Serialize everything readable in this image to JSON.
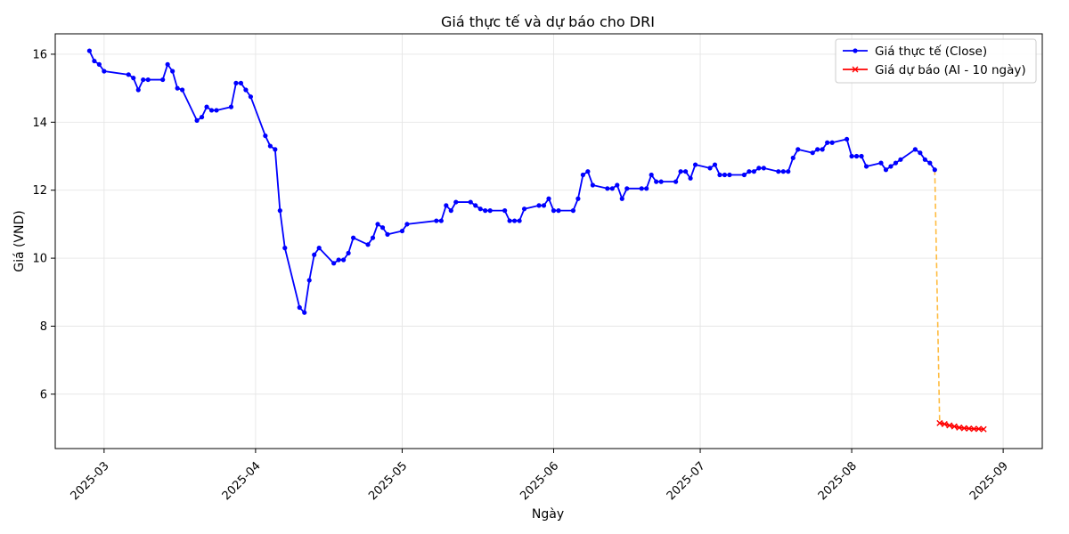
{
  "chart_data": {
    "type": "line",
    "title": "Giá thực tế và dự báo cho DRI",
    "xlabel": "Ngày",
    "ylabel": "Giá (VND)",
    "xlim": [
      "2025-02-19",
      "2025-09-09"
    ],
    "ylim": [
      4.4,
      16.6
    ],
    "x_ticks": [
      "2025-03-01",
      "2025-04-01",
      "2025-05-01",
      "2025-06-01",
      "2025-07-01",
      "2025-08-01",
      "2025-09-01"
    ],
    "x_tick_labels": [
      "2025-03",
      "2025-04",
      "2025-05",
      "2025-06",
      "2025-07",
      "2025-08",
      "2025-09"
    ],
    "y_ticks": [
      6,
      8,
      10,
      12,
      14,
      16
    ],
    "grid": true,
    "legend_position": "top-right",
    "series": [
      {
        "name": "Giá thực tế (Close)",
        "color": "#0000ff",
        "marker": "circle",
        "x": [
          "2025-02-26",
          "2025-02-27",
          "2025-02-28",
          "2025-03-01",
          "2025-03-06",
          "2025-03-07",
          "2025-03-08",
          "2025-03-09",
          "2025-03-10",
          "2025-03-13",
          "2025-03-14",
          "2025-03-15",
          "2025-03-16",
          "2025-03-17",
          "2025-03-20",
          "2025-03-21",
          "2025-03-22",
          "2025-03-23",
          "2025-03-24",
          "2025-03-27",
          "2025-03-28",
          "2025-03-29",
          "2025-03-30",
          "2025-03-31",
          "2025-04-03",
          "2025-04-04",
          "2025-04-05",
          "2025-04-06",
          "2025-04-07",
          "2025-04-10",
          "2025-04-11",
          "2025-04-12",
          "2025-04-13",
          "2025-04-14",
          "2025-04-17",
          "2025-04-18",
          "2025-04-19",
          "2025-04-20",
          "2025-04-21",
          "2025-04-24",
          "2025-04-25",
          "2025-04-26",
          "2025-04-27",
          "2025-04-28",
          "2025-05-01",
          "2025-05-02",
          "2025-05-08",
          "2025-05-09",
          "2025-05-10",
          "2025-05-11",
          "2025-05-12",
          "2025-05-15",
          "2025-05-16",
          "2025-05-17",
          "2025-05-18",
          "2025-05-19",
          "2025-05-22",
          "2025-05-23",
          "2025-05-24",
          "2025-05-25",
          "2025-05-26",
          "2025-05-29",
          "2025-05-30",
          "2025-05-31",
          "2025-06-01",
          "2025-06-02",
          "2025-06-05",
          "2025-06-06",
          "2025-06-07",
          "2025-06-08",
          "2025-06-09",
          "2025-06-12",
          "2025-06-13",
          "2025-06-14",
          "2025-06-15",
          "2025-06-16",
          "2025-06-19",
          "2025-06-20",
          "2025-06-21",
          "2025-06-22",
          "2025-06-23",
          "2025-06-26",
          "2025-06-27",
          "2025-06-28",
          "2025-06-29",
          "2025-06-30",
          "2025-07-03",
          "2025-07-04",
          "2025-07-05",
          "2025-07-06",
          "2025-07-07",
          "2025-07-10",
          "2025-07-11",
          "2025-07-12",
          "2025-07-13",
          "2025-07-14",
          "2025-07-17",
          "2025-07-18",
          "2025-07-19",
          "2025-07-20",
          "2025-07-21",
          "2025-07-24",
          "2025-07-25",
          "2025-07-26",
          "2025-07-27",
          "2025-07-28",
          "2025-07-31",
          "2025-08-01",
          "2025-08-02",
          "2025-08-03",
          "2025-08-04",
          "2025-08-07",
          "2025-08-08",
          "2025-08-09",
          "2025-08-10",
          "2025-08-11",
          "2025-08-14",
          "2025-08-15",
          "2025-08-16",
          "2025-08-17",
          "2025-08-18"
        ],
        "y": [
          16.1,
          15.8,
          15.7,
          15.5,
          15.4,
          15.3,
          14.95,
          15.25,
          15.25,
          15.25,
          15.7,
          15.5,
          15.0,
          14.95,
          14.05,
          14.15,
          14.45,
          14.35,
          14.35,
          14.45,
          15.15,
          15.15,
          14.95,
          14.75,
          13.6,
          13.3,
          13.2,
          11.4,
          10.3,
          8.55,
          8.4,
          9.35,
          10.1,
          10.3,
          9.85,
          9.95,
          9.95,
          10.15,
          10.6,
          10.4,
          10.6,
          11.0,
          10.9,
          10.7,
          10.8,
          11.0,
          11.1,
          11.1,
          11.55,
          11.4,
          11.65,
          11.65,
          11.55,
          11.45,
          11.4,
          11.4,
          11.4,
          11.1,
          11.1,
          11.1,
          11.45,
          11.55,
          11.55,
          11.75,
          11.4,
          11.4,
          11.4,
          11.75,
          12.45,
          12.55,
          12.15,
          12.05,
          12.05,
          12.15,
          11.75,
          12.05,
          12.05,
          12.05,
          12.45,
          12.25,
          12.25,
          12.25,
          12.55,
          12.55,
          12.35,
          12.75,
          12.65,
          12.75,
          12.45,
          12.45,
          12.45,
          12.45,
          12.55,
          12.55,
          12.65,
          12.65,
          12.55,
          12.55,
          12.55,
          12.95,
          13.2,
          13.1,
          13.2,
          13.2,
          13.4,
          13.4,
          13.5,
          13.0,
          13.0,
          13.0,
          12.7,
          12.8,
          12.6,
          12.7,
          12.8,
          12.9,
          13.2,
          13.1,
          12.9,
          12.8,
          12.6
        ]
      },
      {
        "name": "Giá dự báo (AI - 10 ngày)",
        "color": "#ff0000",
        "marker": "x",
        "x": [
          "2025-08-19",
          "2025-08-20",
          "2025-08-21",
          "2025-08-22",
          "2025-08-23",
          "2025-08-24",
          "2025-08-25",
          "2025-08-26",
          "2025-08-27",
          "2025-08-28"
        ],
        "y": [
          5.15,
          5.12,
          5.08,
          5.05,
          5.02,
          5.0,
          4.99,
          4.98,
          4.98,
          4.97
        ]
      }
    ],
    "connector": {
      "color": "#ffa500",
      "from": [
        "2025-08-18",
        12.6
      ],
      "to": [
        "2025-08-19",
        5.15
      ]
    }
  }
}
